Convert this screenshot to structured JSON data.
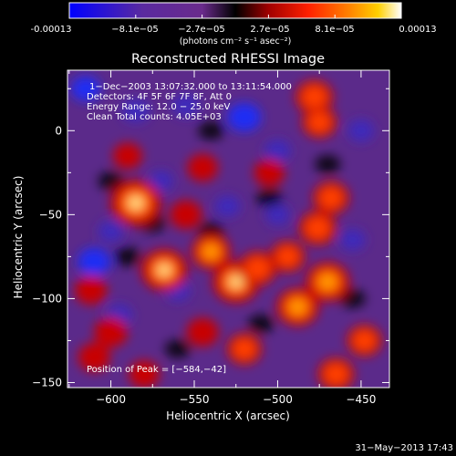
{
  "colorbar": {
    "tick_labels": [
      "-0.00013",
      "−8.1e−05",
      "−2.7e−05",
      "2.7e−05",
      "8.1e−05",
      "0.00013"
    ],
    "unit_label": "(photons cm⁻² s⁻¹ asec⁻²)"
  },
  "chart_data": {
    "type": "heatmap",
    "title": "Reconstructed RHESSI Image",
    "xlabel": "Heliocentric X (arcsec)",
    "ylabel": "Heliocentric Y (arcsec)",
    "xlim": [
      -626,
      -433
    ],
    "ylim": [
      -153,
      36
    ],
    "x_ticks": [
      -600,
      -550,
      -500,
      -450
    ],
    "y_ticks": [
      0,
      -50,
      -100,
      -150
    ],
    "x_tick_labels": [
      "−600",
      "−550",
      "−500",
      "−450"
    ],
    "y_tick_labels": [
      "0",
      "−50",
      "−100",
      "−150"
    ],
    "value_range": [
      -0.00013,
      0.00013
    ],
    "colormap": [
      "#0000ff",
      "#5a2aa0",
      "#6a2b8c",
      "#000000",
      "#a00000",
      "#ff2000",
      "#ff8000",
      "#ffd000",
      "#ffffff"
    ],
    "info_lines": [
      "1−Dec−2003 13:07:32.000 to 13:11:54.000",
      "Detectors: 4F 5F 6F 7F 8F, Att 0",
      "Energy Range: 12.0 − 25.0 keV",
      "Clean    Total counts: 4.05E+03"
    ],
    "peak_label": "Position of Peak = [−584,−42]",
    "peak_position": [
      -584,
      -42
    ],
    "hot_spots": [
      {
        "x": -585,
        "y": -43,
        "v": 1.0
      },
      {
        "x": -568,
        "y": -83,
        "v": 0.85
      },
      {
        "x": -540,
        "y": -72,
        "v": 0.6
      },
      {
        "x": -525,
        "y": -90,
        "v": 0.85
      },
      {
        "x": -512,
        "y": -82,
        "v": 0.55
      },
      {
        "x": -494,
        "y": -75,
        "v": 0.45
      },
      {
        "x": -488,
        "y": -105,
        "v": 0.7
      },
      {
        "x": -470,
        "y": -90,
        "v": 0.75
      },
      {
        "x": -476,
        "y": -58,
        "v": 0.55
      },
      {
        "x": -468,
        "y": -40,
        "v": 0.5
      },
      {
        "x": -478,
        "y": 20,
        "v": 0.55
      },
      {
        "x": -475,
        "y": 5,
        "v": 0.45
      },
      {
        "x": -448,
        "y": -125,
        "v": 0.45
      },
      {
        "x": -465,
        "y": -145,
        "v": 0.5
      },
      {
        "x": -600,
        "y": -120,
        "v": 0.4
      },
      {
        "x": -612,
        "y": -95,
        "v": 0.35
      },
      {
        "x": -545,
        "y": -22,
        "v": 0.3
      },
      {
        "x": -555,
        "y": -50,
        "v": 0.35
      },
      {
        "x": -610,
        "y": -135,
        "v": 0.35
      },
      {
        "x": -520,
        "y": -130,
        "v": 0.45
      },
      {
        "x": -545,
        "y": -120,
        "v": 0.35
      },
      {
        "x": -590,
        "y": -15,
        "v": 0.25
      },
      {
        "x": -505,
        "y": -25,
        "v": 0.3
      },
      {
        "x": -580,
        "y": -145,
        "v": 0.3
      }
    ],
    "cold_spots": [
      {
        "x": -520,
        "y": 8,
        "v": 0.85
      },
      {
        "x": -610,
        "y": -78,
        "v": 0.8
      },
      {
        "x": -615,
        "y": 25,
        "v": 0.6
      },
      {
        "x": -585,
        "y": 12,
        "v": 0.55
      },
      {
        "x": -595,
        "y": -110,
        "v": 0.45
      },
      {
        "x": -555,
        "y": 15,
        "v": 0.5
      },
      {
        "x": -500,
        "y": -12,
        "v": 0.45
      },
      {
        "x": -560,
        "y": -95,
        "v": 0.4
      },
      {
        "x": -530,
        "y": -45,
        "v": 0.4
      },
      {
        "x": -450,
        "y": 0,
        "v": 0.45
      },
      {
        "x": -455,
        "y": -65,
        "v": 0.4
      },
      {
        "x": -570,
        "y": -30,
        "v": 0.35
      },
      {
        "x": -500,
        "y": -50,
        "v": 0.35
      },
      {
        "x": -600,
        "y": -60,
        "v": 0.4
      }
    ]
  },
  "footer": {
    "timestamp": "31−May−2013 17:43"
  }
}
